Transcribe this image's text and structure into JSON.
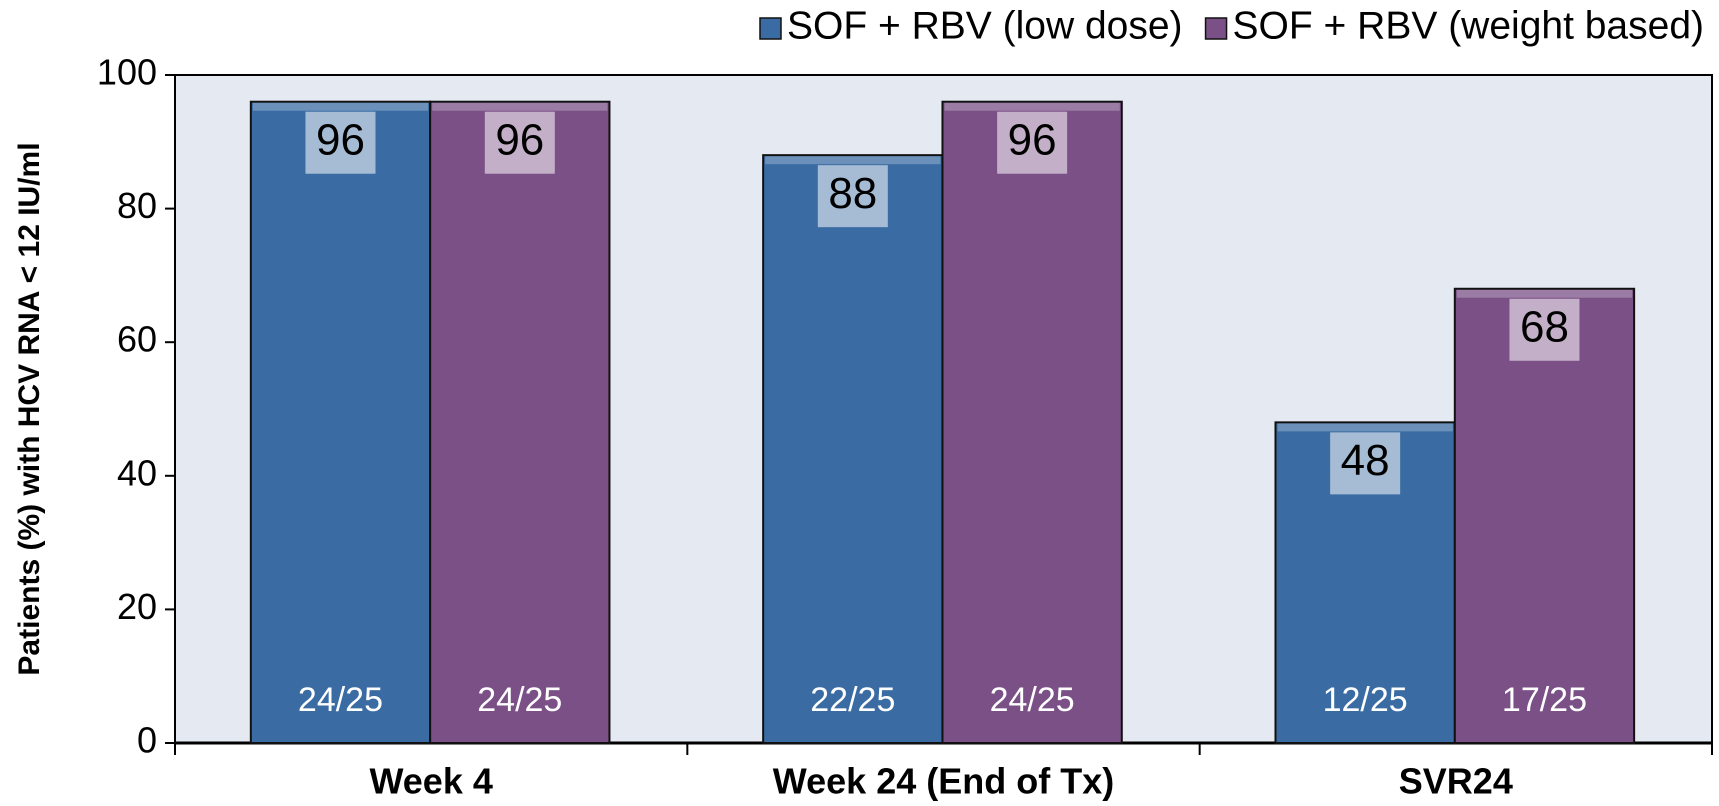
{
  "chart_data": {
    "type": "bar",
    "y_label": "Patients (%) with HCV RNA < 12 IU/ml",
    "categories": [
      "Week 4",
      "Week 24 (End of Tx)",
      "SVR24"
    ],
    "series": [
      {
        "name": "SOF + RBV (low dose)",
        "color": "#3a6ca3",
        "values": [
          96,
          88,
          48
        ],
        "counts": [
          "24/25",
          "22/25",
          "12/25"
        ]
      },
      {
        "name": "SOF + RBV (weight based)",
        "color": "#7a5086",
        "values": [
          96,
          96,
          68
        ],
        "counts": [
          "24/25",
          "24/25",
          "17/25"
        ]
      }
    ],
    "ylim": [
      0,
      100
    ],
    "yticks": [
      0,
      20,
      40,
      60,
      80,
      100
    ],
    "background": "#e5e9f1",
    "legend": "top-right"
  }
}
